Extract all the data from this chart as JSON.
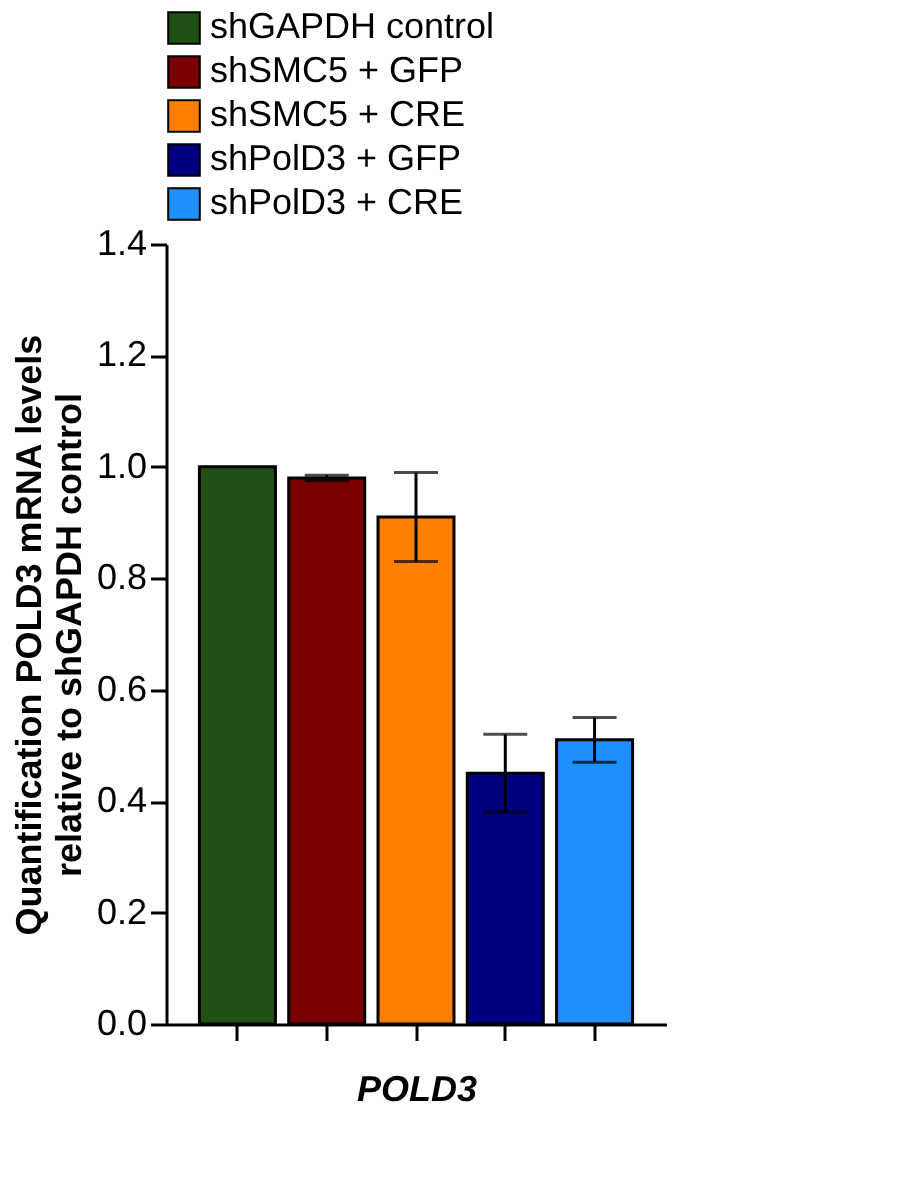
{
  "chart_data": {
    "type": "bar",
    "xlabel": "POLD3",
    "ylabel": "Quantification POLD3 mRNA levels\nrelative to shGAPDH control",
    "categories": [
      null,
      null,
      null,
      null,
      null
    ],
    "series": [
      {
        "name": "shGAPDH control",
        "color": "#1e5014",
        "values": [
          1.0,
          null,
          null,
          null,
          null
        ],
        "errors": [
          null,
          null,
          null,
          null,
          null
        ]
      },
      {
        "name": "shSMC5 + GFP",
        "color": "#7a0000",
        "values": [
          null,
          0.98,
          null,
          null,
          null
        ],
        "errors": [
          null,
          0.005,
          null,
          null,
          null
        ]
      },
      {
        "name": "shSMC5 + CRE",
        "color": "#ff8000",
        "values": [
          null,
          null,
          0.91,
          null,
          null
        ],
        "errors": [
          null,
          null,
          0.08,
          null,
          null
        ]
      },
      {
        "name": "shPolD3 + GFP",
        "color": "#000080",
        "values": [
          null,
          null,
          null,
          0.45,
          null
        ],
        "errors": [
          null,
          null,
          null,
          0.07,
          null
        ]
      },
      {
        "name": "shPolD3 + CRE",
        "color": "#1e8fff",
        "values": [
          null,
          null,
          null,
          null,
          0.51
        ],
        "errors": [
          null,
          null,
          null,
          null,
          0.04
        ]
      }
    ],
    "ylim": [
      0,
      1.4
    ],
    "yticks": [
      {
        "value": 0,
        "label": "0.0"
      },
      {
        "value": 0.2,
        "label": "0.2"
      },
      {
        "value": 0.4,
        "label": "0.4"
      },
      {
        "value": 0.6,
        "label": "0.6"
      },
      {
        "value": 0.8,
        "label": "0.8"
      },
      {
        "value": 1.0,
        "label": "1.0"
      },
      {
        "value": 1.2,
        "label": "1.2"
      },
      {
        "value": 1.4,
        "label": "1.4"
      }
    ],
    "grid": false,
    "legend": "top"
  }
}
